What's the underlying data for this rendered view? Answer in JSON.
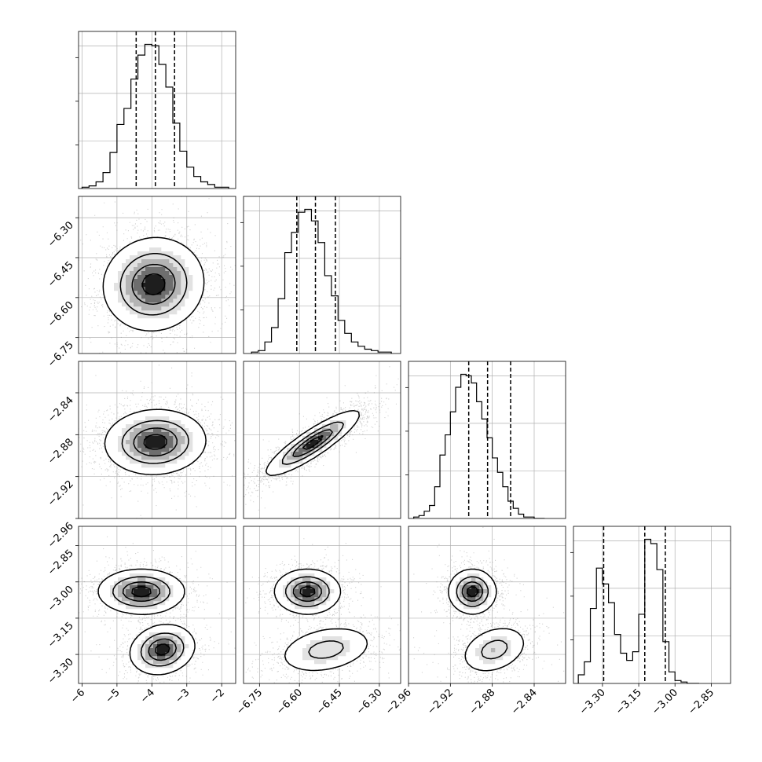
{
  "chart_data": {
    "type": "corner",
    "grid": true,
    "parameters": 4,
    "axes_ticks": [
      {
        "ticks": [
          -6,
          -5,
          -4,
          -3,
          -2
        ],
        "labels": [
          "−6",
          "−5",
          "−4",
          "−3",
          "−2"
        ],
        "range": [
          -6.1,
          -1.6
        ]
      },
      {
        "ticks": [
          -6.75,
          -6.6,
          -6.45,
          -6.3
        ],
        "labels": [
          "−6.75",
          "−6.60",
          "−6.45",
          "−6.30"
        ],
        "range": [
          -6.81,
          -6.22
        ]
      },
      {
        "ticks": [
          -2.96,
          -2.92,
          -2.88,
          -2.84
        ],
        "labels": [
          "−2.96",
          "−2.92",
          "−2.88",
          "−2.84"
        ],
        "range": [
          -2.96,
          -2.81
        ]
      },
      {
        "ticks": [
          -3.3,
          -3.15,
          -3.0,
          -2.85
        ],
        "labels": [
          "−3.30",
          "−3.15",
          "−3.00",
          "−2.85"
        ],
        "range": [
          -3.42,
          -2.77
        ]
      }
    ],
    "marginals": [
      {
        "param": 0,
        "quantiles": [
          -4.45,
          -3.9,
          -3.35
        ],
        "bin_edges": [
          -6.0,
          -5.8,
          -5.6,
          -5.4,
          -5.2,
          -5.0,
          -4.8,
          -4.6,
          -4.4,
          -4.2,
          -4.0,
          -3.8,
          -3.6,
          -3.4,
          -3.2,
          -3.0,
          -2.8,
          -2.6,
          -2.4,
          -2.2,
          -2.0,
          -1.8
        ],
        "counts": [
          1,
          2,
          5,
          12,
          27,
          48,
          60,
          82,
          100,
          108,
          107,
          93,
          76,
          49,
          28,
          16,
          9,
          5,
          3,
          1,
          1
        ]
      },
      {
        "param": 1,
        "quantiles": [
          -6.61,
          -6.54,
          -6.465
        ],
        "bin_edges": [
          -6.78,
          -6.755,
          -6.73,
          -6.705,
          -6.68,
          -6.655,
          -6.63,
          -6.605,
          -6.58,
          -6.555,
          -6.53,
          -6.505,
          -6.48,
          -6.455,
          -6.43,
          -6.405,
          -6.38,
          -6.355,
          -6.33,
          -6.305,
          -6.28,
          -6.255
        ],
        "counts": [
          1,
          2,
          8,
          18,
          38,
          70,
          84,
          98,
          100,
          92,
          77,
          54,
          40,
          23,
          14,
          8,
          5,
          3,
          2,
          1,
          1
        ]
      },
      {
        "param": 2,
        "quantiles": [
          -2.9025,
          -2.8845,
          -2.8625
        ],
        "bin_edges": [
          -2.955,
          -2.95,
          -2.945,
          -2.94,
          -2.935,
          -2.93,
          -2.925,
          -2.92,
          -2.915,
          -2.91,
          -2.905,
          -2.9,
          -2.895,
          -2.89,
          -2.885,
          -2.88,
          -2.875,
          -2.87,
          -2.865,
          -2.86,
          -2.855,
          -2.85,
          -2.845,
          -2.84,
          -2.835,
          -2.83
        ],
        "counts": [
          1,
          2,
          5,
          9,
          22,
          44,
          58,
          74,
          91,
          100,
          99,
          94,
          81,
          69,
          56,
          42,
          32,
          22,
          12,
          7,
          3,
          1,
          1,
          0,
          0
        ]
      },
      {
        "param": 3,
        "quantiles": [
          -3.295,
          -3.125,
          -3.04
        ],
        "bin_edges": [
          -3.4,
          -3.375,
          -3.35,
          -3.325,
          -3.3,
          -3.275,
          -3.25,
          -3.225,
          -3.2,
          -3.175,
          -3.15,
          -3.125,
          -3.1,
          -3.075,
          -3.05,
          -3.025,
          -3.0,
          -2.975,
          -2.95,
          -2.925,
          -2.9
        ],
        "counts": [
          6,
          15,
          52,
          80,
          69,
          56,
          34,
          21,
          16,
          22,
          48,
          100,
          97,
          79,
          29,
          8,
          2,
          1,
          0,
          0
        ]
      }
    ],
    "pairs": [
      {
        "x": 0,
        "y": 1,
        "components": [
          {
            "mx": -3.95,
            "my": -6.55,
            "sx": 0.7,
            "sy": 0.085,
            "rho": 0.05,
            "w": 1.0
          }
        ]
      },
      {
        "x": 0,
        "y": 2,
        "components": [
          {
            "mx": -3.9,
            "my": -2.887,
            "sx": 0.7,
            "sy": 0.015,
            "rho": 0.05,
            "w": 1.0
          }
        ]
      },
      {
        "x": 1,
        "y": 2,
        "components": [
          {
            "mx": -6.55,
            "my": -2.888,
            "sx": 0.085,
            "sy": 0.015,
            "rho": 0.88,
            "w": 1.0
          }
        ]
      },
      {
        "x": 0,
        "y": 3,
        "components": [
          {
            "mx": -4.3,
            "my": -3.04,
            "sx": 0.6,
            "sy": 0.045,
            "rho": 0.0,
            "w": 0.55
          },
          {
            "mx": -3.7,
            "my": -3.28,
            "sx": 0.45,
            "sy": 0.05,
            "rho": 0.15,
            "w": 0.45
          }
        ]
      },
      {
        "x": 1,
        "y": 3,
        "components": [
          {
            "mx": -6.57,
            "my": -3.04,
            "sx": 0.06,
            "sy": 0.045,
            "rho": 0.0,
            "w": 0.55
          },
          {
            "mx": -6.5,
            "my": -3.28,
            "sx": 0.09,
            "sy": 0.05,
            "rho": 0.3,
            "w": 0.45
          }
        ]
      },
      {
        "x": 2,
        "y": 3,
        "components": [
          {
            "mx": -2.899,
            "my": -3.04,
            "sx": 0.011,
            "sy": 0.045,
            "rho": 0.0,
            "w": 0.55
          },
          {
            "mx": -2.878,
            "my": -3.28,
            "sx": 0.016,
            "sy": 0.05,
            "rho": 0.3,
            "w": 0.45
          }
        ]
      }
    ]
  }
}
